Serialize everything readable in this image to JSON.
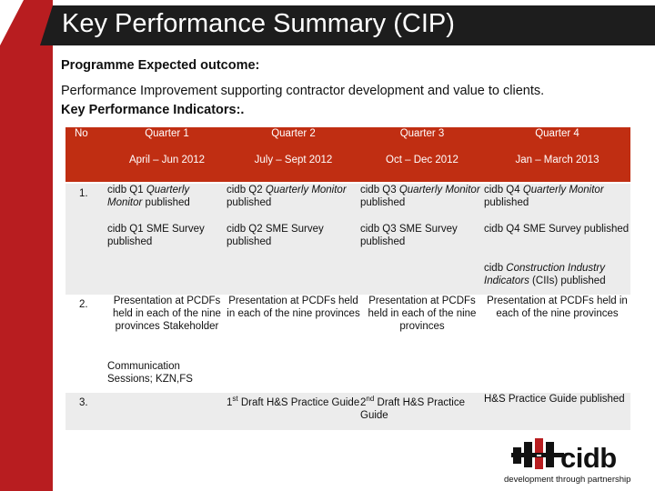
{
  "slide": {
    "title": "Key Performance Summary (CIP)",
    "programme_label": "Programme Expected outcome:",
    "outcome_text": "Performance Improvement supporting contractor development and value to clients.",
    "kpi_label": "Key Performance Indicators:."
  },
  "table": {
    "headers": {
      "no": "No",
      "q1": "Quarter 1",
      "q2": "Quarter 2",
      "q3": "Quarter 3",
      "q4": "Quarter 4",
      "q1_period": "April – Jun 2012",
      "q2_period": "July – Sept 2012",
      "q3_period": "Oct – Dec 2012",
      "q4_period": "Jan  – March 2013"
    },
    "row1": {
      "no": "1.",
      "monitor_q1_a": "cidb Q1 ",
      "monitor_q1_b": "Quarterly Monitor",
      "monitor_q1_c": " published",
      "monitor_q2_a": "cidb Q2 ",
      "monitor_q2_b": "Quarterly Monitor",
      "monitor_q2_c": " published",
      "monitor_q3_a": "cidb Q3 ",
      "monitor_q3_b": "Quarterly Monitor",
      "monitor_q3_c": " published",
      "monitor_q4_a": "cidb Q4 ",
      "monitor_q4_b": "Quarterly Monitor",
      "monitor_q4_c": " published",
      "sme_q1": "cidb Q1 SME Survey published",
      "sme_q2": "cidb Q2 SME Survey published",
      "sme_q3": "cidb Q3 SME Survey published",
      "sme_q4": "cidb Q4 SME Survey published",
      "cii_a": "cidb ",
      "cii_b": "Construction Industry Indicators",
      "cii_c": " (CIIs) published"
    },
    "row2": {
      "no": "2.",
      "q1": "Presentation at PCDFs held in each of the nine provinces Stakeholder",
      "q2": "Presentation at PCDFs held in each of the nine provinces",
      "q3": "Presentation at PCDFs held in each of the nine provinces",
      "q4": "Presentation at PCDFs held in each of the nine provinces",
      "communication": "Communication Sessions; KZN,FS"
    },
    "row3": {
      "no": "3.",
      "q2_a": "1",
      "q2_sup": "st",
      "q2_b": " Draft H&S Practice Guide",
      "q3_a": "2",
      "q3_sup": "nd",
      "q3_b": " Draft H&S Practice Guide",
      "q4": "H&S Practice Guide published"
    }
  },
  "logo": {
    "name": "cidb",
    "tagline": "development through partnership"
  },
  "colors": {
    "accent_red": "#b81d20",
    "header_red": "#c02e12",
    "title_bar": "#1d1d1d",
    "row_band": "#ececec"
  }
}
